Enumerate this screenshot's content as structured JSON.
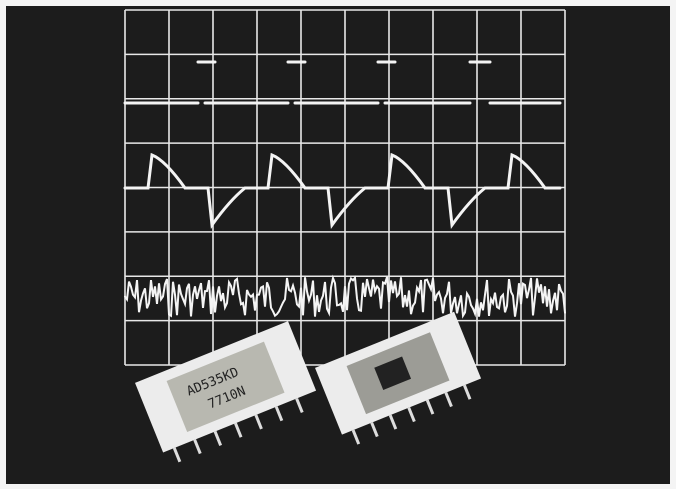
{
  "chip": {
    "label_line1": "AD535KD",
    "label_line2": "7710N"
  }
}
